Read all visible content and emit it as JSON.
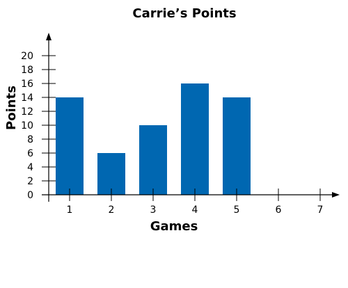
{
  "chart_data": {
    "type": "bar",
    "title": "Carrie’s Points",
    "xlabel": "Games",
    "ylabel": "Points",
    "categories": [
      "1",
      "2",
      "3",
      "4",
      "5",
      "6",
      "7"
    ],
    "values": [
      14,
      6,
      10,
      16,
      14,
      null,
      null
    ],
    "ylim": [
      0,
      20
    ],
    "yticks": [
      "0",
      "2",
      "4",
      "6",
      "8",
      "10",
      "12",
      "14",
      "16",
      "18",
      "20"
    ],
    "grid": false,
    "bar_color": "#0067b1",
    "axis_color": "#000000"
  }
}
